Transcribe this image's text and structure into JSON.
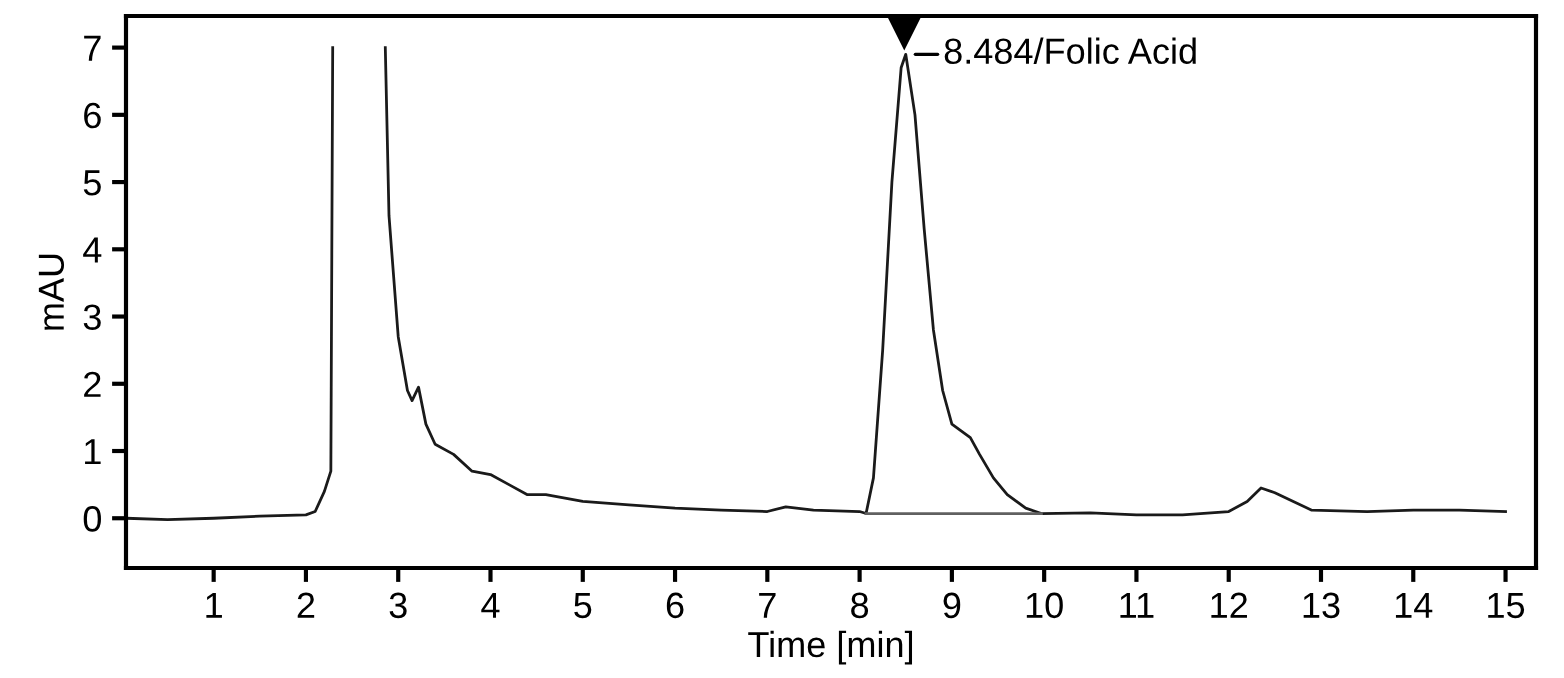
{
  "chart_data": {
    "type": "line",
    "xlabel": "Time [min]",
    "ylabel": "mAU",
    "xlim": [
      0.05,
      15.33
    ],
    "ylim": [
      -0.74,
      7.47
    ],
    "xticks": [
      1,
      2,
      3,
      4,
      5,
      6,
      7,
      8,
      9,
      10,
      11,
      12,
      13,
      14,
      15
    ],
    "yticks": [
      0,
      1,
      2,
      3,
      4,
      5,
      6,
      7
    ],
    "grid": false,
    "annotations": [
      {
        "text": "8.484/Folic Acid",
        "x": 8.484,
        "y": 6.9
      }
    ],
    "series": [
      {
        "color": "#1a1a1a",
        "x": [
          0.05,
          0.5,
          1.0,
          1.5,
          2.0,
          2.1,
          2.2,
          2.27,
          2.29,
          2.3,
          2.85,
          2.86,
          2.9,
          3.0,
          3.1,
          3.15,
          3.22,
          3.3,
          3.4,
          3.6,
          3.8,
          4.0,
          4.2,
          4.4,
          4.6,
          5.0,
          5.5,
          6.0,
          6.5,
          7.0,
          7.2,
          7.5,
          8.0,
          8.07,
          8.15,
          8.25,
          8.35,
          8.45,
          8.5,
          8.6,
          8.7,
          8.8,
          8.9,
          9.0,
          9.1,
          9.2,
          9.3,
          9.45,
          9.6,
          9.8,
          9.97,
          10.5,
          11.0,
          11.5,
          12.0,
          12.2,
          12.35,
          12.5,
          12.7,
          12.9,
          13.5,
          14.0,
          14.5,
          15.0
        ],
        "values": [
          0,
          -0.02,
          0,
          0.03,
          0.05,
          0.1,
          0.4,
          0.7,
          7.0,
          null,
          null,
          7.0,
          4.5,
          2.7,
          1.9,
          1.75,
          1.95,
          1.4,
          1.1,
          0.95,
          0.7,
          0.65,
          0.5,
          0.35,
          0.35,
          0.25,
          0.2,
          0.15,
          0.12,
          0.1,
          0.17,
          0.12,
          0.1,
          0.07,
          0.6,
          2.5,
          5.0,
          6.7,
          6.9,
          6.0,
          4.3,
          2.8,
          1.9,
          1.4,
          1.3,
          1.2,
          0.95,
          0.6,
          0.35,
          0.15,
          0.07,
          0.08,
          0.05,
          0.05,
          0.1,
          0.25,
          0.45,
          0.38,
          0.25,
          0.12,
          0.1,
          0.12,
          0.12,
          0.1
        ]
      },
      {
        "color": "#606060",
        "x": [
          8.07,
          9.97
        ],
        "values": [
          0.07,
          0.07
        ]
      }
    ]
  }
}
